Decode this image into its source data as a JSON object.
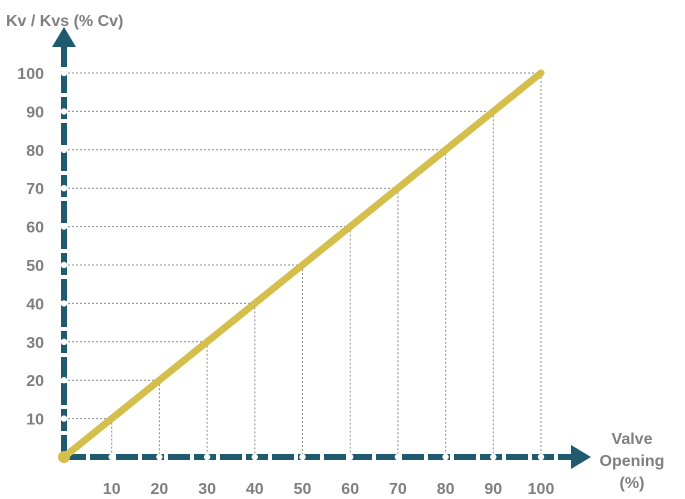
{
  "chart_data": {
    "type": "line",
    "xlabel_lines": [
      "Valve",
      "Opening",
      "(%)"
    ],
    "ylabel": "Kv / Kvs (% Cv)",
    "xlim": [
      0,
      100
    ],
    "ylim": [
      0,
      100
    ],
    "x_ticks": [
      10,
      20,
      30,
      40,
      50,
      60,
      70,
      80,
      90,
      100
    ],
    "y_ticks": [
      10,
      20,
      30,
      40,
      50,
      60,
      70,
      80,
      90,
      100
    ],
    "x": [
      0,
      100
    ],
    "series": [
      {
        "values": [
          0,
          100
        ]
      }
    ],
    "grid": true,
    "colors": {
      "axis": "#1f5a6e",
      "line": "#d4bf4c",
      "grid": "#8c8c8c",
      "dot": "#ffffff",
      "origin": "#d4bf4c",
      "text": "#7f7f7f"
    }
  }
}
